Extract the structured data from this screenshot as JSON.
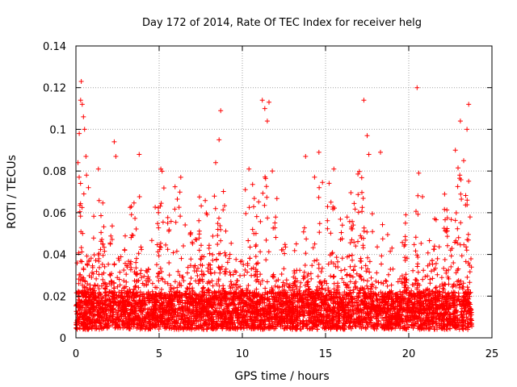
{
  "chart_data": {
    "type": "scatter",
    "title": "Day 172 of 2014, Rate Of TEC Index for receiver helg",
    "xlabel": "GPS time / hours",
    "ylabel": "ROTI / TECUs",
    "xlim": [
      0,
      25
    ],
    "ylim": [
      0,
      0.14
    ],
    "xticks": [
      0,
      5,
      10,
      15,
      20,
      25
    ],
    "yticks": [
      0,
      0.02,
      0.04,
      0.06,
      0.08,
      0.1,
      0.12,
      0.14
    ],
    "xtick_labels": [
      "0",
      "5",
      "10",
      "15",
      "20",
      "25"
    ],
    "ytick_labels": [
      "0",
      "0.02",
      "0.04",
      "0.06",
      "0.08",
      "0.1",
      "0.12",
      "0.14"
    ],
    "grid": true,
    "marker": "+",
    "color": "#ff0000",
    "data_x_range": [
      0,
      23.8
    ],
    "series": [
      {
        "name": "ROTI",
        "outliers": [
          [
            0.12,
            0.084
          ],
          [
            0.2,
            0.098
          ],
          [
            0.28,
            0.114
          ],
          [
            0.32,
            0.123
          ],
          [
            0.38,
            0.112
          ],
          [
            0.45,
            0.106
          ],
          [
            0.52,
            0.1
          ],
          [
            0.6,
            0.087
          ],
          [
            0.75,
            0.072
          ],
          [
            1.35,
            0.081
          ],
          [
            2.3,
            0.094
          ],
          [
            2.4,
            0.087
          ],
          [
            3.8,
            0.088
          ],
          [
            5.1,
            0.081
          ],
          [
            6.3,
            0.077
          ],
          [
            8.4,
            0.084
          ],
          [
            8.6,
            0.095
          ],
          [
            8.7,
            0.109
          ],
          [
            10.4,
            0.081
          ],
          [
            11.2,
            0.114
          ],
          [
            11.35,
            0.11
          ],
          [
            11.5,
            0.104
          ],
          [
            11.6,
            0.113
          ],
          [
            11.8,
            0.08
          ],
          [
            13.8,
            0.087
          ],
          [
            14.6,
            0.089
          ],
          [
            15.5,
            0.081
          ],
          [
            17.3,
            0.114
          ],
          [
            17.5,
            0.097
          ],
          [
            17.6,
            0.088
          ],
          [
            18.3,
            0.089
          ],
          [
            19.8,
            0.055
          ],
          [
            20.5,
            0.12
          ],
          [
            20.6,
            0.079
          ],
          [
            22.8,
            0.09
          ],
          [
            23.1,
            0.104
          ],
          [
            23.3,
            0.085
          ],
          [
            23.5,
            0.1
          ],
          [
            23.6,
            0.112
          ]
        ],
        "bursts": [
          [
            0.3,
            0.07
          ],
          [
            1.0,
            0.05
          ],
          [
            1.6,
            0.06
          ],
          [
            2.1,
            0.045
          ],
          [
            2.9,
            0.04
          ],
          [
            3.6,
            0.06
          ],
          [
            4.3,
            0.045
          ],
          [
            5.0,
            0.07
          ],
          [
            5.6,
            0.05
          ],
          [
            6.2,
            0.065
          ],
          [
            6.9,
            0.05
          ],
          [
            7.5,
            0.06
          ],
          [
            8.1,
            0.055
          ],
          [
            8.6,
            0.065
          ],
          [
            9.3,
            0.05
          ],
          [
            10.4,
            0.07
          ],
          [
            10.9,
            0.06
          ],
          [
            11.4,
            0.085
          ],
          [
            11.9,
            0.06
          ],
          [
            12.5,
            0.05
          ],
          [
            13.2,
            0.045
          ],
          [
            13.9,
            0.055
          ],
          [
            14.6,
            0.07
          ],
          [
            15.4,
            0.065
          ],
          [
            15.9,
            0.05
          ],
          [
            16.6,
            0.06
          ],
          [
            17.2,
            0.075
          ],
          [
            17.6,
            0.06
          ],
          [
            18.3,
            0.045
          ],
          [
            19.0,
            0.04
          ],
          [
            19.8,
            0.05
          ],
          [
            20.5,
            0.065
          ],
          [
            21.5,
            0.05
          ],
          [
            22.3,
            0.06
          ],
          [
            23.0,
            0.085
          ],
          [
            23.5,
            0.07
          ]
        ]
      }
    ]
  }
}
